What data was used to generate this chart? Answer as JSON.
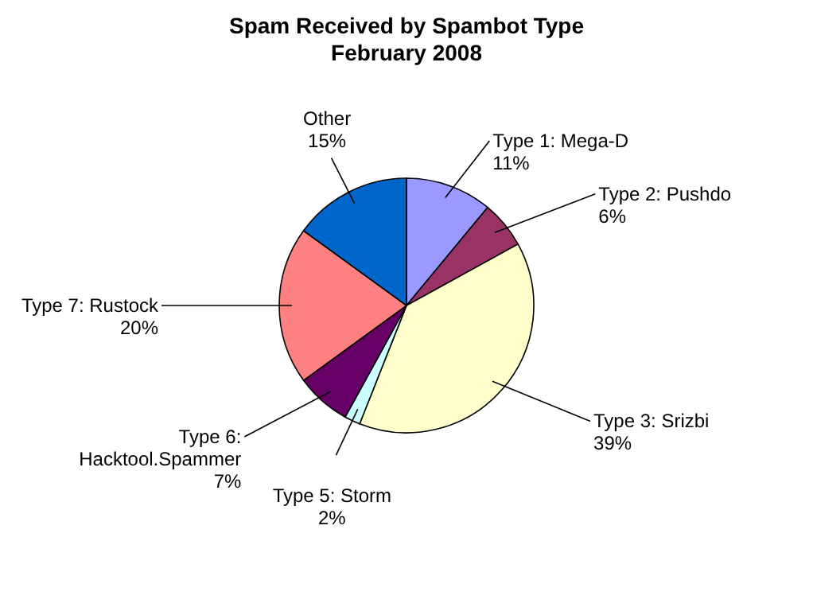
{
  "chart_data": {
    "type": "pie",
    "title": "Spam Received by Spambot Type",
    "subtitle": "February 2008",
    "categories": [
      "Type 1: Mega-D",
      "Type 2: Pushdo",
      "Type 3: Srizbi",
      "Type 5: Storm",
      "Type 6: Hacktool.Spammer",
      "Type 7: Rustock",
      "Other"
    ],
    "values": [
      11,
      6,
      39,
      2,
      7,
      20,
      15
    ],
    "colors": [
      "#9999ff",
      "#993366",
      "#ffffcc",
      "#ccffff",
      "#660066",
      "#ff8080",
      "#0066cc"
    ],
    "value_labels": [
      "11%",
      "6%",
      "39%",
      "2%",
      "7%",
      "20%",
      "15%"
    ],
    "legend": false
  }
}
